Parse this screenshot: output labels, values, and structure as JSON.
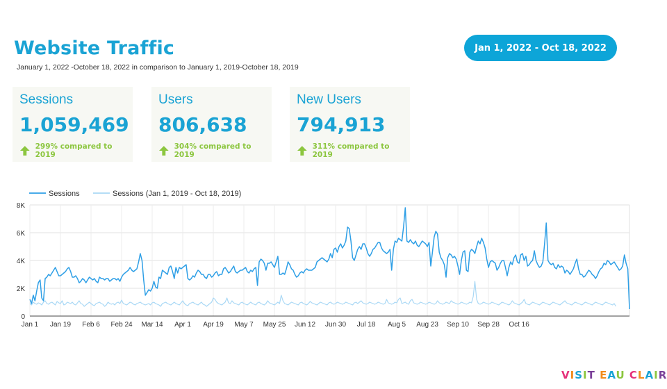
{
  "header": {
    "title": "Website Traffic",
    "subtitle": "January 1, 2022 -October 18, 2022 in comparison to January 1, 2019-October 18, 2019",
    "date_range_button": "Jan 1, 2022 - Oct 18, 2022"
  },
  "scorecards": [
    {
      "label": "Sessions",
      "value": "1,059,469",
      "comparison": "299% compared to 2019",
      "trend_icon": "arrow-up-icon"
    },
    {
      "label": "Users",
      "value": "806,638",
      "comparison": "304% compared to 2019",
      "trend_icon": "arrow-up-icon"
    },
    {
      "label": "New Users",
      "value": "794,913",
      "comparison": "311% compared to 2019",
      "trend_icon": "arrow-up-icon"
    }
  ],
  "colors": {
    "accent": "#1aa3d4",
    "button": "#0da5d8",
    "positive": "#8cc63f",
    "series_current": "#2e9fe6",
    "series_previous": "#a9d8f5",
    "card_bg": "#f7f8f3"
  },
  "logo_text": "VISIT EAU CLAIRE",
  "chart_data": {
    "type": "line",
    "ylim": [
      0,
      8000
    ],
    "yticks": [
      0,
      2000,
      4000,
      6000,
      8000
    ],
    "ytick_labels": [
      "0",
      "2K",
      "4K",
      "6K",
      "8K"
    ],
    "x_tick_labels": [
      "Jan 1",
      "Jan 19",
      "Feb 6",
      "Feb 24",
      "Mar 14",
      "Apr 1",
      "Apr 19",
      "May 7",
      "May 25",
      "Jun 12",
      "Jun 30",
      "Jul 18",
      "Aug 5",
      "Aug 23",
      "Sep 10",
      "Sep 28",
      "Oct 16"
    ],
    "x_tick_every_days": 18,
    "grid": true,
    "legend_position": "top-left",
    "series": [
      {
        "name": "Sessions",
        "color": "#2e9fe6",
        "values": [
          1200,
          900,
          1500,
          1100,
          1800,
          2400,
          2600,
          1300,
          1100,
          2700,
          2800,
          3000,
          2900,
          3100,
          3300,
          3500,
          3200,
          2900,
          2900,
          3000,
          3100,
          3200,
          3400,
          3500,
          3200,
          2800,
          2800,
          2900,
          2700,
          2400,
          2500,
          2700,
          2600,
          2400,
          2600,
          2800,
          2700,
          2600,
          2700,
          2500,
          2400,
          2800,
          2700,
          2700,
          2600,
          2700,
          2700,
          2500,
          2600,
          2700,
          2700,
          2600,
          2700,
          2500,
          2800,
          3000,
          3100,
          3200,
          3300,
          3500,
          3300,
          3200,
          3300,
          3400,
          3900,
          4500,
          4000,
          2600,
          1500,
          1700,
          1900,
          1800,
          2000,
          2500,
          2100,
          2000,
          2800,
          2700,
          3300,
          3200,
          3100,
          3000,
          3500,
          3600,
          3200,
          2700,
          3500,
          3100,
          3500,
          3400,
          3500,
          3600,
          3700,
          2700,
          2600,
          2700,
          2900,
          2800,
          3100,
          3300,
          3200,
          3000,
          3000,
          2800,
          2700,
          3000,
          3000,
          2800,
          2900,
          3100,
          3200,
          2900,
          3000,
          3000,
          3400,
          3500,
          3300,
          3100,
          3200,
          3400,
          3600,
          3200,
          3100,
          3200,
          3300,
          3300,
          3400,
          3500,
          3200,
          3100,
          3300,
          3200,
          3400,
          3500,
          2200,
          3900,
          4100,
          4000,
          3800,
          3300,
          3800,
          3800,
          3900,
          3700,
          3500,
          3900,
          4300,
          3000,
          3000,
          3100,
          3000,
          3400,
          3900,
          3700,
          3400,
          3300,
          3000,
          2800,
          2900,
          3100,
          3200,
          3100,
          3300,
          3400,
          3300,
          3300,
          3300,
          3400,
          3500,
          3900,
          4000,
          4100,
          4200,
          4100,
          4000,
          3900,
          4100,
          4500,
          4200,
          4800,
          4900,
          4600,
          5000,
          5200,
          4900,
          5100,
          5400,
          6400,
          6300,
          5400,
          4200,
          4000,
          4400,
          4800,
          5000,
          4800,
          5200,
          5200,
          4900,
          4500,
          4300,
          4500,
          4800,
          4900,
          5100,
          5300,
          5300,
          4900,
          4700,
          4600,
          4500,
          4600,
          4800,
          3300,
          4800,
          5400,
          5300,
          5600,
          5500,
          5400,
          6400,
          7800,
          5400,
          5300,
          5500,
          5300,
          5200,
          5400,
          5100,
          5000,
          5200,
          5400,
          5300,
          5200,
          5000,
          5300,
          3600,
          4600,
          5700,
          6100,
          5900,
          4600,
          4200,
          4000,
          3700,
          2800,
          4200,
          4500,
          4400,
          4200,
          4300,
          4100,
          3600,
          3000,
          4000,
          4600,
          4700,
          3300,
          3200,
          4600,
          4800,
          4700,
          4500,
          5000,
          5400,
          5200,
          5600,
          5300,
          4900,
          4100,
          3500,
          3900,
          4000,
          3900,
          3800,
          3300,
          3500,
          3800,
          4000,
          4000,
          3500,
          2900,
          3500,
          3900,
          3700,
          4200,
          4400,
          3900,
          3800,
          4400,
          4500,
          4000,
          4300,
          3600,
          3700,
          3900,
          4000,
          4700,
          4000,
          3700,
          3500,
          3600,
          3900,
          5200,
          6700,
          4000,
          3800,
          3700,
          3800,
          3500,
          3400,
          3700,
          3500,
          3600,
          3500,
          3100,
          3300,
          3200,
          3000,
          3200,
          3400,
          3800,
          4100,
          3400,
          3000,
          3000,
          2800,
          2900,
          3100,
          3300,
          3200,
          3000,
          2900,
          2700,
          2900,
          3200,
          3400,
          3500,
          3800,
          3700,
          4000,
          3900,
          3700,
          3800,
          3900,
          3700,
          3500,
          3300,
          3400,
          3600,
          4400,
          3800,
          3400,
          500
        ]
      },
      {
        "name": "Sessions (Jan 1, 2019 - Oct 18, 2019)",
        "color": "#a9d8f5",
        "values": [
          900,
          800,
          1000,
          900,
          850,
          950,
          900,
          800,
          1000,
          1100,
          900,
          850,
          950,
          1000,
          900,
          800,
          1050,
          950,
          900,
          1100,
          800,
          850,
          1000,
          950,
          900,
          1000,
          850,
          800,
          950,
          1100,
          900,
          850,
          700,
          800,
          900,
          1000,
          900,
          800,
          750,
          900,
          950,
          1000,
          900,
          850,
          700,
          800,
          1000,
          900,
          850,
          900,
          800,
          950,
          1000,
          900,
          1150,
          900,
          850,
          800,
          900,
          1000,
          950,
          850,
          800,
          900,
          950,
          1000,
          900,
          850,
          800,
          850,
          900,
          800,
          950,
          1000,
          900,
          850,
          800,
          700,
          900,
          950,
          1000,
          900,
          850,
          800,
          900,
          1000,
          900,
          850,
          800,
          950,
          1100,
          900,
          800,
          750,
          900,
          950,
          1000,
          900,
          850,
          800,
          900,
          1000,
          850,
          800,
          700,
          800,
          900,
          1000,
          1300,
          1200,
          1000,
          900,
          850,
          800,
          900,
          1000,
          1300,
          950,
          900,
          1100,
          950,
          900,
          850,
          800,
          950,
          1000,
          900,
          850,
          800,
          900,
          1000,
          900,
          850,
          800,
          950,
          1000,
          900,
          850,
          800,
          900,
          1100,
          950,
          900,
          850,
          800,
          900,
          1000,
          900,
          1500,
          1100,
          900,
          850,
          800,
          900,
          1000,
          950,
          900,
          850,
          800,
          950,
          1000,
          900,
          850,
          800,
          900,
          1050,
          950,
          900,
          850,
          800,
          900,
          1000,
          950,
          900,
          850,
          800,
          950,
          1000,
          900,
          850,
          900,
          1000,
          950,
          900,
          850,
          900,
          1000,
          950,
          900,
          850,
          800,
          950,
          1000,
          900,
          1000,
          1100,
          950,
          900,
          850,
          900,
          1000,
          950,
          900,
          850,
          900,
          1000,
          950,
          900,
          850,
          900,
          1200,
          950,
          900,
          850,
          900,
          1000,
          950,
          1200,
          1300,
          900,
          950,
          1000,
          900,
          850,
          1100,
          1200,
          950,
          900,
          850,
          900,
          1000,
          950,
          900,
          850,
          900,
          1000,
          950,
          900,
          850,
          900,
          1100,
          950,
          900,
          850,
          900,
          1000,
          950,
          900,
          1100,
          1000,
          950,
          900,
          850,
          900,
          1000,
          950,
          900,
          850,
          900,
          1000,
          950,
          1400,
          2500,
          1200,
          900,
          850,
          900,
          1000,
          950,
          900,
          850,
          900,
          1000,
          950,
          900,
          850,
          800,
          900,
          1000,
          950,
          900,
          850,
          800,
          900,
          1100,
          950,
          900,
          850,
          800,
          900,
          1000,
          1200,
          900,
          850,
          800,
          900,
          1000,
          950,
          900,
          850,
          800,
          900,
          1000,
          950,
          900,
          850,
          800,
          900,
          1000,
          950,
          900,
          850,
          800,
          900,
          1000,
          1100,
          950,
          900,
          850,
          800,
          900,
          1000,
          950,
          900,
          850,
          800,
          900,
          1000,
          950,
          900,
          850,
          800,
          900,
          1000,
          950,
          900,
          850,
          800,
          900,
          1000,
          950,
          900,
          850,
          800,
          900,
          700
        ]
      }
    ]
  }
}
